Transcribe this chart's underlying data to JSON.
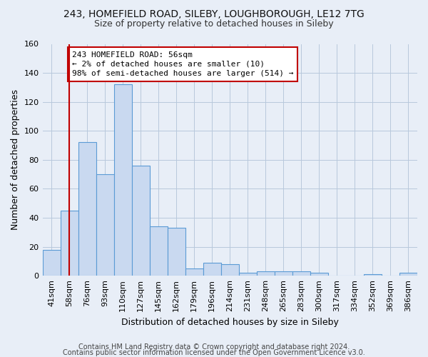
{
  "title1": "243, HOMEFIELD ROAD, SILEBY, LOUGHBOROUGH, LE12 7TG",
  "title2": "Size of property relative to detached houses in Sileby",
  "xlabel": "Distribution of detached houses by size in Sileby",
  "ylabel": "Number of detached properties",
  "categories": [
    "41sqm",
    "58sqm",
    "76sqm",
    "93sqm",
    "110sqm",
    "127sqm",
    "145sqm",
    "162sqm",
    "179sqm",
    "196sqm",
    "214sqm",
    "231sqm",
    "248sqm",
    "265sqm",
    "283sqm",
    "300sqm",
    "317sqm",
    "334sqm",
    "352sqm",
    "369sqm",
    "386sqm"
  ],
  "values": [
    18,
    45,
    92,
    70,
    132,
    76,
    34,
    33,
    5,
    9,
    8,
    2,
    3,
    3,
    3,
    2,
    0,
    0,
    1,
    0,
    2
  ],
  "bar_color": "#c9d9f0",
  "bar_edge_color": "#5b9bd5",
  "vline_x": 1,
  "vline_color": "#c00000",
  "annotation_line1": "243 HOMEFIELD ROAD: 56sqm",
  "annotation_line2": "← 2% of detached houses are smaller (10)",
  "annotation_line3": "98% of semi-detached houses are larger (514) →",
  "annotation_box_color": "#ffffff",
  "annotation_box_edge_color": "#c00000",
  "ylim": [
    0,
    160
  ],
  "yticks": [
    0,
    20,
    40,
    60,
    80,
    100,
    120,
    140,
    160
  ],
  "footer1": "Contains HM Land Registry data © Crown copyright and database right 2024.",
  "footer2": "Contains public sector information licensed under the Open Government Licence v3.0.",
  "bg_color": "#e8eef7",
  "plot_bg_color": "#e8eef7",
  "title1_fontsize": 10,
  "title2_fontsize": 9,
  "axis_label_fontsize": 9,
  "tick_fontsize": 8,
  "annotation_fontsize": 8,
  "footer_fontsize": 7
}
